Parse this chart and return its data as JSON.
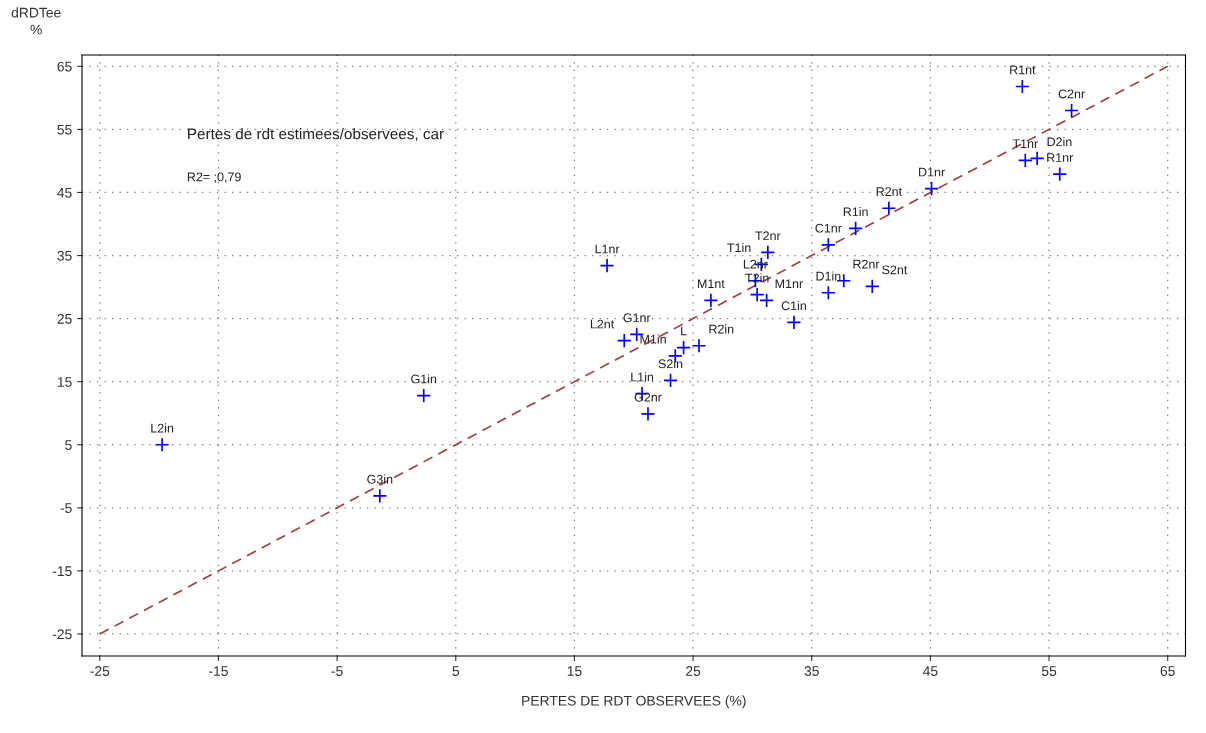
{
  "chart_data": {
    "type": "scatter",
    "title": "Pertes de rdt estimees/observees, car",
    "xlabel": "PERTES DE RDT OBSERVEES (%)",
    "ylabel": "dRDTee\n%",
    "xlim": [
      -26.5,
      66.5
    ],
    "ylim": [
      -28.5,
      66.8
    ],
    "xticks": [
      -25,
      -15,
      -5,
      5,
      15,
      25,
      35,
      45,
      55,
      65
    ],
    "yticks": [
      -25,
      -15,
      -5,
      5,
      15,
      25,
      35,
      45,
      55,
      65
    ],
    "grid": true,
    "series": [
      {
        "marker": "cross",
        "color": "#0000ff",
        "x": [
          -19.75,
          -1.4,
          2.3,
          17.75,
          31.3,
          30.75,
          30.25,
          30.4,
          31.2,
          26.5,
          33.5,
          36.4,
          36.4,
          37.7,
          40.1,
          20.25,
          19.2,
          24.2,
          23.5,
          25.5,
          23.1,
          20.7,
          21.2,
          52.75,
          56.9,
          53.0,
          54.0,
          55.9,
          45.1,
          41.5,
          38.7
        ],
        "values": [
          5.0,
          -3.1,
          12.8,
          33.4,
          35.5,
          33.6,
          31.0,
          28.8,
          27.9,
          27.9,
          24.4,
          36.7,
          29.1,
          31.0,
          30.1,
          22.5,
          21.5,
          20.4,
          19.1,
          20.7,
          15.2,
          13.1,
          9.9,
          61.8,
          58.0,
          50.1,
          50.4,
          47.9,
          45.6,
          42.5,
          39.3
        ]
      },
      {
        "type": "line",
        "color": "#a04040",
        "line_style": "dashed",
        "x": [
          -25,
          65
        ],
        "values": [
          -25,
          65
        ]
      }
    ],
    "annotations": [
      "R2= ;0,79",
      {
        "text": "L2in",
        "x": -19.75,
        "y": 5.0
      },
      {
        "text": "G3in",
        "x": -1.4,
        "y": -3.1
      },
      {
        "text": "G1in",
        "x": 2.3,
        "y": 12.8
      },
      {
        "text": "L1nr",
        "x": 17.75,
        "y": 33.4
      },
      {
        "text": "T2nr",
        "x": 31.3,
        "y": 35.5
      },
      {
        "text": "T1in",
        "x": 30.75,
        "y": 33.6
      },
      {
        "text": "L2nr",
        "x": 30.25,
        "y": 31.0
      },
      {
        "text": "T2in",
        "x": 30.4,
        "y": 28.8
      },
      {
        "text": "M1nr",
        "x": 31.2,
        "y": 27.9
      },
      {
        "text": "M1nt",
        "x": 26.5,
        "y": 27.9
      },
      {
        "text": "C1in",
        "x": 33.5,
        "y": 24.4
      },
      {
        "text": "C1nr",
        "x": 36.4,
        "y": 36.7
      },
      {
        "text": "D1in",
        "x": 36.4,
        "y": 29.1
      },
      {
        "text": "R2nr",
        "x": 37.7,
        "y": 31.0
      },
      {
        "text": "S2nt",
        "x": 40.1,
        "y": 30.1
      },
      {
        "text": "G1nr",
        "x": 20.25,
        "y": 22.5
      },
      {
        "text": "L2nt",
        "x": 19.2,
        "y": 21.5
      },
      {
        "text": "L",
        "x": 24.2,
        "y": 20.4
      },
      {
        "text": "M1in",
        "x": 23.5,
        "y": 19.1
      },
      {
        "text": "R2in",
        "x": 25.5,
        "y": 20.7
      },
      {
        "text": "S2in",
        "x": 23.1,
        "y": 15.2
      },
      {
        "text": "L1in",
        "x": 20.7,
        "y": 13.1
      },
      {
        "text": "G2nr",
        "x": 21.2,
        "y": 9.9
      },
      {
        "text": "R1nt",
        "x": 52.75,
        "y": 61.8
      },
      {
        "text": "C2nr",
        "x": 56.9,
        "y": 58.0
      },
      {
        "text": "T1nr",
        "x": 53.0,
        "y": 50.1
      },
      {
        "text": "D2in",
        "x": 54.0,
        "y": 50.4
      },
      {
        "text": "R1nr",
        "x": 55.9,
        "y": 47.9
      },
      {
        "text": "D1nr",
        "x": 45.1,
        "y": 45.6
      },
      {
        "text": "R2nt",
        "x": 41.5,
        "y": 42.5
      },
      {
        "text": "R1in",
        "x": 38.7,
        "y": 39.3
      }
    ]
  }
}
